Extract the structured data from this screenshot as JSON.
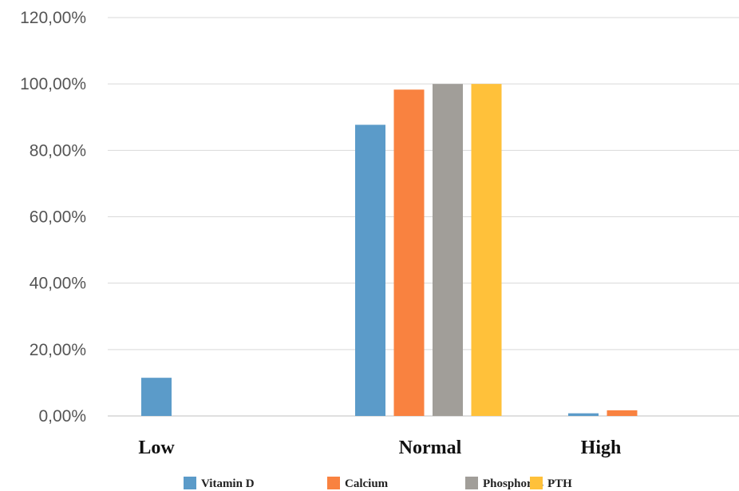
{
  "chart_data": {
    "type": "bar",
    "title": "",
    "xlabel": "",
    "ylabel": "",
    "categories": [
      "Low",
      "Normal",
      "High"
    ],
    "series": [
      {
        "name": "Vitamin D",
        "color": "#5B9BC9",
        "values": [
          11.5,
          87.7,
          0.8
        ]
      },
      {
        "name": "Calcium",
        "color": "#F98240",
        "values": [
          0,
          98.3,
          1.7
        ]
      },
      {
        "name": "Phosphorus",
        "color": "#A19E99",
        "values": [
          0,
          100,
          0
        ]
      },
      {
        "name": "PTH",
        "color": "#FFC13A",
        "values": [
          0,
          100,
          0
        ]
      }
    ],
    "ylim": [
      0,
      120
    ],
    "yticks": [
      "0,00%",
      "20,00%",
      "40,00%",
      "60,00%",
      "80,00%",
      "100,00%",
      "120,00%"
    ],
    "grid": true,
    "legend_position": "bottom"
  }
}
